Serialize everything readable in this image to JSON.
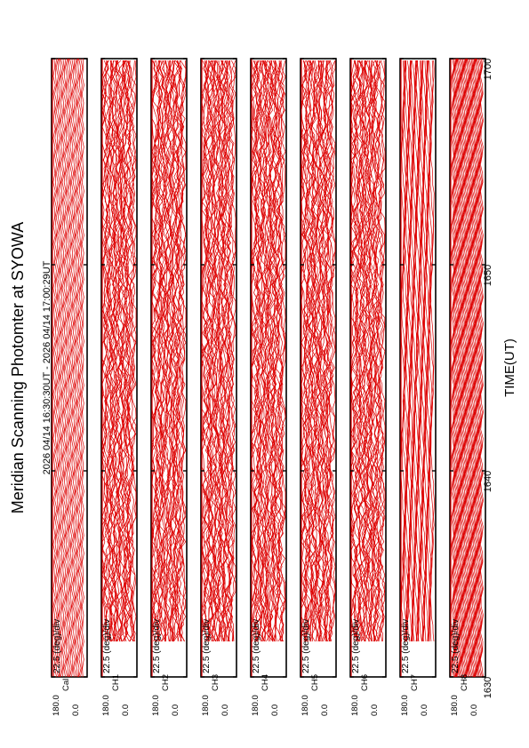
{
  "title": "Meridian Scanning Photomter at SYOWA",
  "time_range": "2026 04/14 16:30:30UT - 2026 04/14 17:00:29UT",
  "chart_data": {
    "type": "line",
    "title": "Meridian Scanning Photomter at SYOWA",
    "xlabel": "TIME(UT)",
    "x_ticks": [
      "1630",
      "1640",
      "1650",
      "1700"
    ],
    "xlim": [
      "1630",
      "1700"
    ],
    "ylim": [
      0.0,
      180.0
    ],
    "y_tick_labels": [
      "180.0",
      "0.0"
    ],
    "scale_label": "22.5 (deg)/div",
    "grid": false,
    "legend": "none",
    "line_color": "#dd0000",
    "panels": [
      {
        "channel": "Cal",
        "y_top": "180.0",
        "y_bottom": "0.0",
        "scale": "22.5 (deg)/div",
        "pattern": "periodic calibration"
      },
      {
        "channel": "CH1",
        "y_top": "180.0",
        "y_bottom": "0.0",
        "scale": "22.5 (deg)/div",
        "pattern": "stacked scans"
      },
      {
        "channel": "CH2",
        "y_top": "180.0",
        "y_bottom": "0.0",
        "scale": "22.5 (deg)/div",
        "pattern": "stacked scans"
      },
      {
        "channel": "CH3",
        "y_top": "180.0",
        "y_bottom": "0.0",
        "scale": "22.5 (deg)/div",
        "pattern": "stacked scans"
      },
      {
        "channel": "CH4",
        "y_top": "180.0",
        "y_bottom": "0.0",
        "scale": "22.5 (deg)/div",
        "pattern": "stacked scans"
      },
      {
        "channel": "CH5",
        "y_top": "180.0",
        "y_bottom": "0.0",
        "scale": "22.5 (deg)/div",
        "pattern": "stacked scans"
      },
      {
        "channel": "CH6",
        "y_top": "180.0",
        "y_bottom": "0.0",
        "scale": "22.5 (deg)/div",
        "pattern": "stacked scans"
      },
      {
        "channel": "CH7",
        "y_top": "180.0",
        "y_bottom": "0.0",
        "scale": "22.5 (deg)/div",
        "pattern": "smooth scans"
      },
      {
        "channel": "CH8",
        "y_top": "180.0",
        "y_bottom": "0.0",
        "scale": "22.5 (deg)/div",
        "pattern": "periodic scans"
      }
    ]
  }
}
